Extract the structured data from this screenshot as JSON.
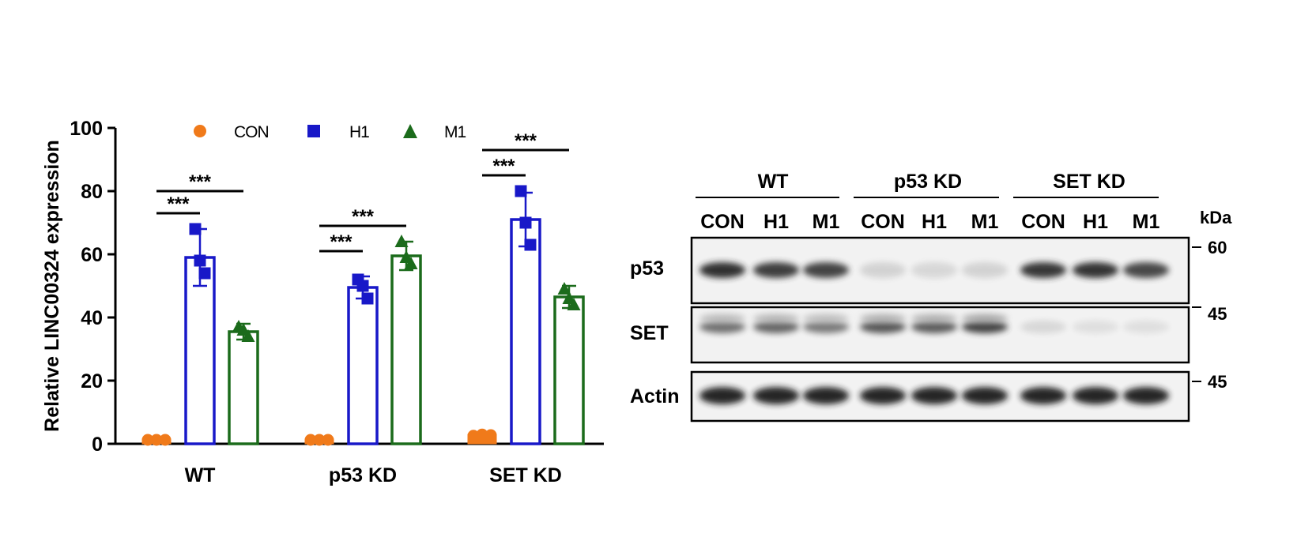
{
  "chart_data": {
    "type": "bar",
    "ylabel": "Relative LINC00324 expression",
    "ylim": [
      0,
      100
    ],
    "yticks": [
      0,
      20,
      40,
      60,
      80,
      100
    ],
    "categories": [
      "WT",
      "p53 KD",
      "SET KD"
    ],
    "series": [
      {
        "name": "CON",
        "color": "#F07A1A",
        "marker": "circle",
        "fill": "orange",
        "values": [
          1,
          1,
          2.5
        ],
        "errors": [
          0,
          0,
          0.3
        ],
        "points": [
          [
            1,
            1,
            1
          ],
          [
            1,
            1,
            1
          ],
          [
            2.3,
            2.7,
            2.5
          ]
        ]
      },
      {
        "name": "H1",
        "color": "#1818C8",
        "marker": "square",
        "fill": "none",
        "values": [
          59,
          49.5,
          71
        ],
        "errors": [
          9,
          3.5,
          8.5
        ],
        "points": [
          [
            68,
            58,
            54
          ],
          [
            52,
            50,
            46
          ],
          [
            80,
            70,
            63
          ]
        ]
      },
      {
        "name": "M1",
        "color": "#1B6B1B",
        "marker": "triangle",
        "fill": "none",
        "values": [
          35.5,
          59.5,
          46.5
        ],
        "errors": [
          2.5,
          4.5,
          3.5
        ],
        "points": [
          [
            37,
            36,
            34
          ],
          [
            64,
            59,
            57
          ],
          [
            49,
            46,
            44
          ]
        ]
      }
    ],
    "significance": [
      {
        "group": 0,
        "from": 0,
        "to": 1,
        "label": "***",
        "y": 73
      },
      {
        "group": 0,
        "from": 0,
        "to": 2,
        "label": "***",
        "y": 80
      },
      {
        "group": 1,
        "from": 0,
        "to": 1,
        "label": "***",
        "y": 61
      },
      {
        "group": 1,
        "from": 0,
        "to": 2,
        "label": "***",
        "y": 69
      },
      {
        "group": 2,
        "from": 0,
        "to": 1,
        "label": "***",
        "y": 85
      },
      {
        "group": 2,
        "from": 0,
        "to": 2,
        "label": "***",
        "y": 93
      }
    ]
  },
  "blot": {
    "groups": [
      "WT",
      "p53 KD",
      "SET KD"
    ],
    "lanes": [
      "CON",
      "H1",
      "M1",
      "CON",
      "H1",
      "M1",
      "CON",
      "H1",
      "M1"
    ],
    "kda_label": "kDa",
    "rows": [
      {
        "label": "p53",
        "markers": [
          "60"
        ],
        "intensity": [
          0.92,
          0.85,
          0.82,
          0.12,
          0.1,
          0.12,
          0.88,
          0.9,
          0.8
        ]
      },
      {
        "label": "SET",
        "markers": [
          "45"
        ],
        "intensity": [
          0.6,
          0.65,
          0.55,
          0.72,
          0.7,
          0.82,
          0.1,
          0.06,
          0.06
        ]
      },
      {
        "label": "Actin",
        "markers": [
          "45"
        ],
        "intensity": [
          0.95,
          0.95,
          0.95,
          0.95,
          0.95,
          0.95,
          0.95,
          0.95,
          0.95
        ]
      }
    ]
  }
}
